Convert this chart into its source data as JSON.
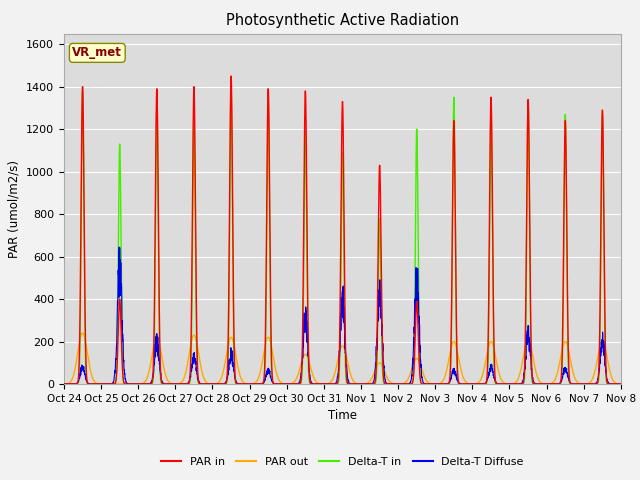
{
  "title": "Photosynthetic Active Radiation",
  "ylabel": "PAR (umol/m2/s)",
  "xlabel": "Time",
  "ylim": [
    0,
    1650
  ],
  "yticks": [
    0,
    200,
    400,
    600,
    800,
    1000,
    1200,
    1400,
    1600
  ],
  "xtick_labels": [
    "Oct 24",
    "Oct 25",
    "Oct 26",
    "Oct 27",
    "Oct 28",
    "Oct 29",
    "Oct 30",
    "Oct 31",
    "Nov 1",
    "Nov 2",
    "Nov 3",
    "Nov 4",
    "Nov 5",
    "Nov 6",
    "Nov 7",
    "Nov 8"
  ],
  "colors": {
    "par_in": "#ff0000",
    "par_out": "#ffaa00",
    "delta_t_in": "#44ee00",
    "delta_t_diffuse": "#0000ee"
  },
  "fig_bg": "#f2f2f2",
  "ax_bg": "#dcdcdc",
  "grid_color": "#ffffff",
  "vr_met_label": "VR_met",
  "vr_met_bg": "#ffffcc",
  "vr_met_border": "#888800",
  "vr_met_fg": "#880000",
  "legend_labels": [
    "PAR in",
    "PAR out",
    "Delta-T in",
    "Delta-T Diffuse"
  ],
  "n_days": 15,
  "pts_per_day": 200,
  "par_in_peaks": [
    1400,
    400,
    1390,
    1400,
    1450,
    1390,
    1380,
    1330,
    1030,
    390,
    1240,
    1350,
    1340,
    1240,
    1290
  ],
  "par_out_peaks": [
    240,
    0,
    220,
    230,
    220,
    220,
    140,
    180,
    100,
    120,
    200,
    200,
    210,
    200,
    200
  ],
  "delta_t_peaks": [
    1380,
    1130,
    1300,
    1260,
    1390,
    1340,
    1190,
    1090,
    780,
    1200,
    1350,
    1290,
    1320,
    1270,
    1270
  ],
  "delta_t_d_peaks": [
    100,
    700,
    250,
    160,
    175,
    80,
    380,
    490,
    570,
    610,
    80,
    100,
    290,
    90,
    250
  ],
  "par_in_sigma": 0.04,
  "par_out_sigma": 0.13,
  "delta_t_sigma": 0.035,
  "delta_t_d_sigma": 0.06
}
